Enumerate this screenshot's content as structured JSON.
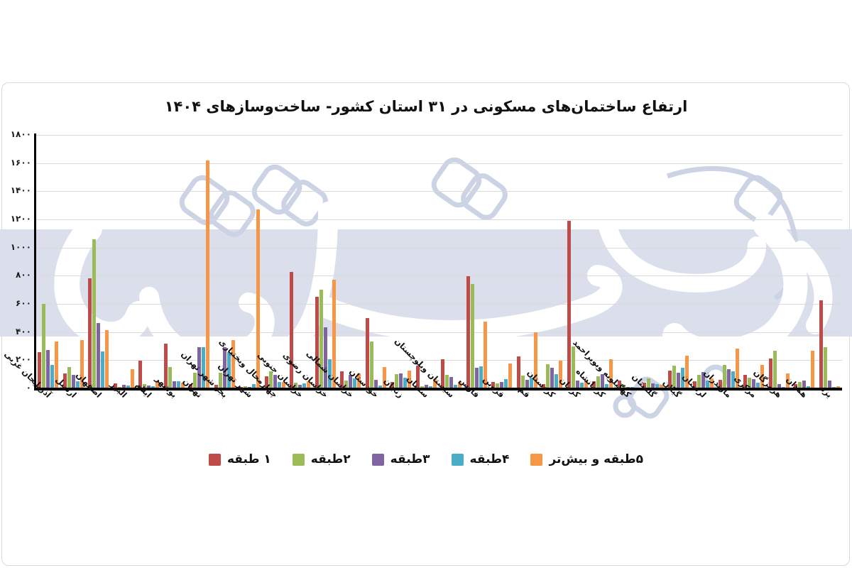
{
  "chart_title": "ارتفاع ساختمان‌های مسکونی در ۳۱ استان کشور- ساخت‌وسازهای ۱۴۰۴",
  "watermark_text": "دنیای اقتصاد",
  "colors": {
    "band": "#dbdfec",
    "gridline": "#d9d9d9",
    "axis": "#000000",
    "watermark_outline": "#ccd3e4",
    "watermark_fill": "#ffffff"
  },
  "chart_data": {
    "type": "bar",
    "title": "ارتفاع ساختمان‌های مسکونی در ۳۱ استان کشور- ساخت‌وسازهای ۱۴۰۴",
    "xlabel": "",
    "ylabel": "",
    "ylim": [
      0,
      1800
    ],
    "grid": "horizontal",
    "legend_position": "bottom",
    "band_highlight": {
      "from": 370,
      "to": 1130,
      "color": "#dbdfec"
    },
    "yticks": [
      {
        "v": 0,
        "label": "۰"
      },
      {
        "v": 200,
        "label": "۲۰۰"
      },
      {
        "v": 400,
        "label": "۴۰۰"
      },
      {
        "v": 600,
        "label": "۶۰۰"
      },
      {
        "v": 800,
        "label": "۸۰۰"
      },
      {
        "v": 1000,
        "label": "۱۰۰۰"
      },
      {
        "v": 1200,
        "label": "۱۲۰۰"
      },
      {
        "v": 1400,
        "label": "۱۴۰۰"
      },
      {
        "v": 1600,
        "label": "۱۶۰۰"
      },
      {
        "v": 1800,
        "label": "۱۸۰۰"
      }
    ],
    "categories": [
      "آذربایجان غربی",
      "اردبیل",
      "اصفهان",
      "البرز",
      "ایلام",
      "بوشهر",
      "تهران",
      "بجز شهر تهران",
      "شهر تهران",
      "چهارمحال وبختیاری",
      "خراسان جنوبی",
      "خراسان رضوی",
      "خراسان شمالی",
      "خوزستان",
      "زنجان",
      "سمنان",
      "سیستان وبلوچستان",
      "فارس",
      "قزوین",
      "قم",
      "کردستان",
      "کرمان",
      "کرمانشاه",
      "کهگیلویه وبویراحمد",
      "گلستان",
      "گیلان",
      "لرستان",
      "مازندران",
      "مرکزی",
      "هرمزگان",
      "همدان",
      "یزد"
    ],
    "series": [
      {
        "name": "۱ طبقه",
        "color": "#be4b48",
        "values": [
          255,
          105,
          780,
          35,
          197,
          318,
          28,
          25,
          10,
          85,
          828,
          648,
          122,
          498,
          46,
          162,
          206,
          798,
          44,
          229,
          30,
          1192,
          50,
          56,
          42,
          128,
          50,
          60,
          94,
          212,
          30,
          627
        ]
      },
      {
        "name": "۲طبقه",
        "color": "#9bbb59",
        "values": [
          600,
          153,
          1060,
          12,
          30,
          150,
          112,
          110,
          15,
          122,
          40,
          700,
          56,
          333,
          102,
          14,
          96,
          742,
          36,
          91,
          173,
          300,
          86,
          26,
          72,
          161,
          97,
          165,
          74,
          266,
          47,
          291
        ]
      },
      {
        "name": "۳طبقه",
        "color": "#8064a2",
        "values": [
          270,
          94,
          462,
          25,
          18,
          50,
          292,
          290,
          12,
          95,
          25,
          432,
          94,
          60,
          107,
          24,
          81,
          148,
          47,
          61,
          145,
          55,
          103,
          10,
          36,
          111,
          114,
          137,
          64,
          30,
          57,
          57
        ]
      },
      {
        "name": "۴طبقه",
        "color": "#4bacc6",
        "values": [
          165,
          52,
          262,
          20,
          13,
          52,
          292,
          255,
          30,
          46,
          35,
          208,
          70,
          18,
          77,
          14,
          24,
          156,
          64,
          74,
          102,
          40,
          30,
          8,
          30,
          145,
          56,
          120,
          40,
          10,
          13,
          8
        ]
      },
      {
        "name": "۵طبقه و بیش‌تر",
        "color": "#f79646",
        "values": [
          335,
          345,
          415,
          135,
          45,
          40,
          1620,
          345,
          1270,
          46,
          50,
          772,
          108,
          153,
          124,
          64,
          47,
          476,
          178,
          397,
          198,
          52,
          208,
          6,
          24,
          232,
          70,
          283,
          165,
          104,
          266,
          14
        ]
      }
    ]
  }
}
